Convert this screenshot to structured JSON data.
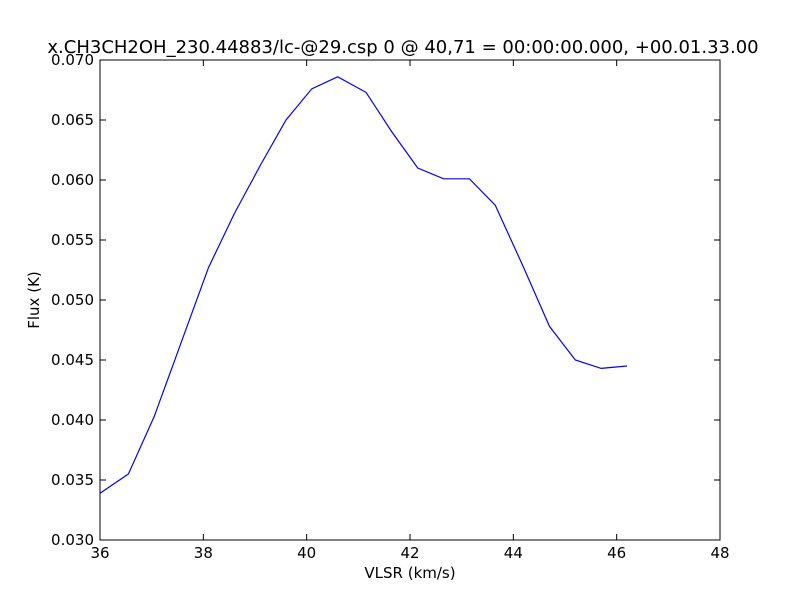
{
  "chart_data": {
    "type": "line",
    "title": "x.CH3CH2OH_230.44883/lc-@29.csp 0 @ 40,71 = 00:00:00.000, +00.01.33.00",
    "xlabel": "VLSR (km/s)",
    "ylabel": "Flux (K)",
    "xlim": [
      36,
      48
    ],
    "ylim": [
      0.03,
      0.07
    ],
    "xticks": [
      "36",
      "38",
      "40",
      "42",
      "44",
      "46",
      "48"
    ],
    "yticks": [
      "0.030",
      "0.035",
      "0.040",
      "0.045",
      "0.050",
      "0.055",
      "0.060",
      "0.065",
      "0.070"
    ],
    "grid": false,
    "line_color": "#0000ff",
    "series": [
      {
        "x": [
          36.0,
          36.55,
          37.05,
          37.6,
          38.1,
          38.6,
          39.1,
          39.6,
          40.1,
          40.6,
          41.15,
          41.65,
          42.15,
          42.65,
          43.15,
          43.65,
          44.2,
          44.7,
          45.2,
          45.7,
          46.2
        ],
        "y": [
          0.0339,
          0.0355,
          0.0403,
          0.0468,
          0.0527,
          0.0572,
          0.0612,
          0.065,
          0.0676,
          0.0686,
          0.0673,
          0.064,
          0.061,
          0.0601,
          0.0601,
          0.0579,
          0.0527,
          0.0478,
          0.045,
          0.0443,
          0.0445
        ]
      }
    ]
  }
}
